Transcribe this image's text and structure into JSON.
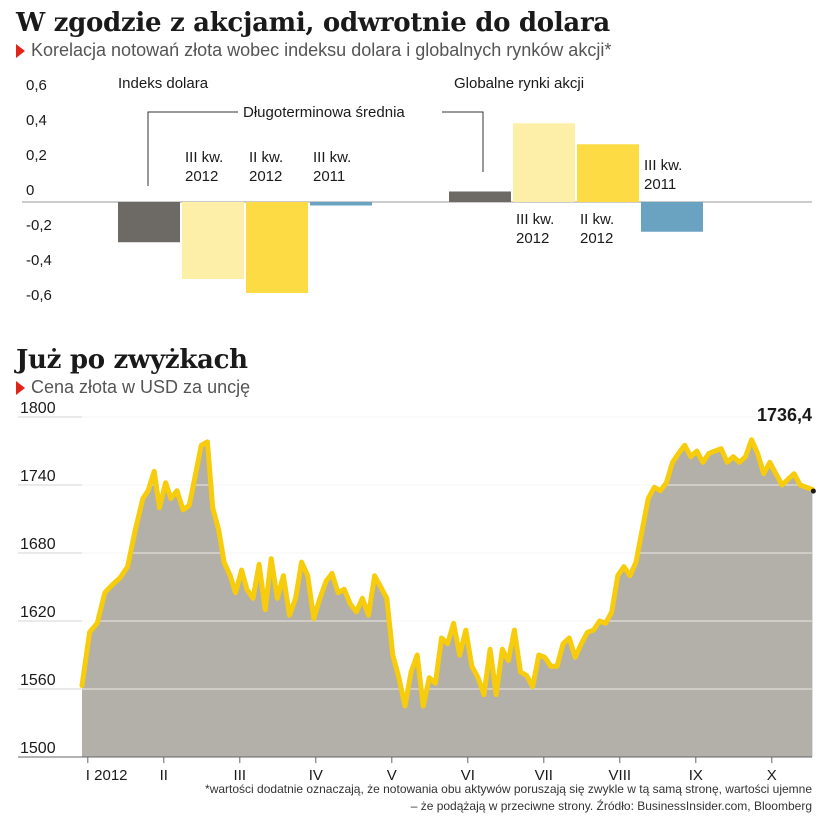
{
  "colors": {
    "accent_triangle": "#e2231a",
    "dark_gray": "#6d6a66",
    "light_yellow": "#fdeea8",
    "yellow": "#fddb45",
    "blue": "#6aa3c2",
    "area_fill": "#b3afa9",
    "gold_line": "#f7cc0c",
    "axis_text": "#1a1a1a"
  },
  "header1": {
    "title": "W zgodzie z akcjami, odwrotnie do dolara",
    "subtitle": "Korelacja notowań złota wobec indeksu dolara i globalnych rynków akcji*"
  },
  "header2": {
    "title": "Już po zwyżkach",
    "subtitle": "Cena złota w USD za uncję"
  },
  "footnote": {
    "line1": "*wartości dodatnie oznaczają, że notowania obu aktywów poruszają się zwykle w tą samą stronę, wartości ujemne",
    "line2": "– że podążają w przeciwne strony. Źródło: BusinessInsider.com, Bloomberg"
  },
  "chart_data": [
    {
      "type": "bar",
      "title": "W zgodzie z akcjami, odwrotnie do dolara",
      "subtitle": "Korelacja notowań złota wobec indeksu dolara i globalnych rynków akcji*",
      "ylim": [
        -0.6,
        0.6
      ],
      "yticks": [
        "0,6",
        "0,4",
        "0,2",
        "0",
        "-0,2",
        "-0,4",
        "-0,6"
      ],
      "ytick_values": [
        0.6,
        0.4,
        0.2,
        0,
        -0.2,
        -0.4,
        -0.6
      ],
      "annotation": "Długoterminowa średnia",
      "groups": [
        {
          "name": "Indeks dolara",
          "bars": [
            {
              "label": "Długoterminowa średnia",
              "value": -0.23,
              "color": "#6d6a66",
              "label_l1": "",
              "label_l2": ""
            },
            {
              "label": "III kw. 2012",
              "value": -0.44,
              "color": "#fdeea8",
              "label_l1": "III kw.",
              "label_l2": "2012"
            },
            {
              "label": "II kw. 2012",
              "value": -0.52,
              "color": "#fddb45",
              "label_l1": "II kw.",
              "label_l2": "2012"
            },
            {
              "label": "III kw. 2011",
              "value": -0.02,
              "color": "#6aa3c2",
              "label_l1": "III kw.",
              "label_l2": "2011"
            }
          ]
        },
        {
          "name": "Globalne rynki akcji",
          "bars": [
            {
              "label": "Długoterminowa średnia",
              "value": 0.06,
              "color": "#6d6a66",
              "label_l1": "",
              "label_l2": ""
            },
            {
              "label": "III kw. 2012",
              "value": 0.45,
              "color": "#fdeea8",
              "label_l1": "III kw.",
              "label_l2": "2012"
            },
            {
              "label": "II kw. 2012",
              "value": 0.33,
              "color": "#fddb45",
              "label_l1": "II kw.",
              "label_l2": "2012"
            },
            {
              "label": "III kw. 2011",
              "value": -0.17,
              "color": "#6aa3c2",
              "label_l1": "III kw.",
              "label_l2": "2011"
            }
          ]
        }
      ]
    },
    {
      "type": "area",
      "title": "Już po zwyżkach",
      "subtitle": "Cena złota w USD za uncję",
      "ylim": [
        1500,
        1800
      ],
      "yticks": [
        1800,
        1740,
        1680,
        1620,
        1560,
        1500
      ],
      "xticks": [
        "I 2012",
        "II",
        "III",
        "IV",
        "V",
        "VI",
        "VII",
        "VIII",
        "IX",
        "X"
      ],
      "xtick_positions": [
        0,
        1,
        2,
        3,
        4,
        5,
        6,
        7,
        8,
        9
      ],
      "xlim": [
        -0.1,
        9.6
      ],
      "last_value": 1736.4,
      "last_value_label": "1736,4",
      "x": [
        -0.05,
        0.05,
        0.15,
        0.25,
        0.35,
        0.45,
        0.55,
        0.65,
        0.75,
        0.82,
        0.9,
        0.97,
        1.05,
        1.12,
        1.2,
        1.28,
        1.36,
        1.44,
        1.52,
        1.6,
        1.67,
        1.75,
        1.82,
        1.9,
        1.97,
        2.05,
        2.12,
        2.2,
        2.28,
        2.36,
        2.44,
        2.52,
        2.6,
        2.68,
        2.76,
        2.84,
        2.92,
        3.0,
        3.08,
        3.16,
        3.24,
        3.32,
        3.4,
        3.48,
        3.56,
        3.64,
        3.72,
        3.8,
        3.88,
        3.96,
        4.04,
        4.12,
        4.2,
        4.28,
        4.36,
        4.44,
        4.52,
        4.6,
        4.68,
        4.76,
        4.84,
        4.92,
        5.0,
        5.08,
        5.16,
        5.24,
        5.32,
        5.4,
        5.48,
        5.56,
        5.64,
        5.72,
        5.8,
        5.88,
        5.96,
        6.04,
        6.12,
        6.2,
        6.28,
        6.36,
        6.44,
        6.52,
        6.6,
        6.68,
        6.76,
        6.84,
        6.92,
        7.0,
        7.08,
        7.16,
        7.24,
        7.32,
        7.4,
        7.48,
        7.56,
        7.64,
        7.72,
        7.8,
        7.88,
        7.96,
        8.04,
        8.12,
        8.2,
        8.28,
        8.36,
        8.44,
        8.52,
        8.6,
        8.68,
        8.76,
        8.84,
        8.92,
        9.0,
        9.08,
        9.16,
        9.24,
        9.32,
        9.4,
        9.48,
        9.56
      ],
      "values": [
        1563,
        1610,
        1618,
        1645,
        1652,
        1658,
        1668,
        1700,
        1728,
        1735,
        1752,
        1720,
        1742,
        1728,
        1735,
        1718,
        1722,
        1748,
        1775,
        1778,
        1720,
        1700,
        1672,
        1660,
        1645,
        1665,
        1648,
        1640,
        1670,
        1630,
        1675,
        1640,
        1660,
        1625,
        1640,
        1672,
        1660,
        1622,
        1640,
        1655,
        1662,
        1645,
        1648,
        1635,
        1628,
        1640,
        1625,
        1660,
        1650,
        1640,
        1590,
        1570,
        1545,
        1575,
        1590,
        1545,
        1570,
        1565,
        1605,
        1600,
        1618,
        1590,
        1612,
        1580,
        1570,
        1555,
        1595,
        1555,
        1595,
        1585,
        1612,
        1575,
        1572,
        1562,
        1590,
        1588,
        1580,
        1580,
        1600,
        1605,
        1588,
        1600,
        1610,
        1612,
        1620,
        1618,
        1628,
        1660,
        1668,
        1660,
        1672,
        1700,
        1728,
        1738,
        1735,
        1742,
        1760,
        1768,
        1775,
        1765,
        1770,
        1760,
        1768,
        1770,
        1772,
        1760,
        1765,
        1760,
        1765,
        1780,
        1768,
        1750,
        1760,
        1750,
        1740,
        1745,
        1750,
        1740,
        1738,
        1736
      ]
    }
  ]
}
